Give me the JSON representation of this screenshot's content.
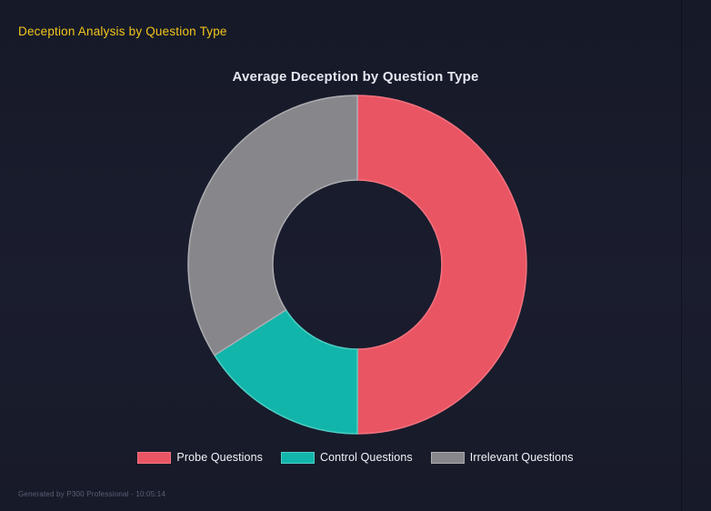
{
  "page": {
    "title": "Deception Analysis by Question Type"
  },
  "colors": {
    "background": "#181B2B",
    "page_title": "#F2C51D",
    "chart_title": "#E4E7EF",
    "legend_text": "#F2F4F9",
    "footer_text": "#5A6076"
  },
  "chart_data": {
    "type": "pie",
    "variant": "donut",
    "title": "Average Deception by Question Type",
    "legend_position": "bottom",
    "start_angle_deg": 0,
    "inner_radius_ratio": 0.5,
    "slices": [
      {
        "label": "Probe Questions",
        "percent": 50,
        "color": "#EA5564",
        "border_color": "#F2737F"
      },
      {
        "label": "Control Questions",
        "percent": 16,
        "color": "#12B5AA",
        "border_color": "#4FCFC5"
      },
      {
        "label": "Irrelevant Questions",
        "percent": 34,
        "color": "#86868B",
        "border_color": "#ACACB1"
      }
    ]
  },
  "footer": {
    "text": "Generated by P300 Professional - 10:05:14"
  }
}
